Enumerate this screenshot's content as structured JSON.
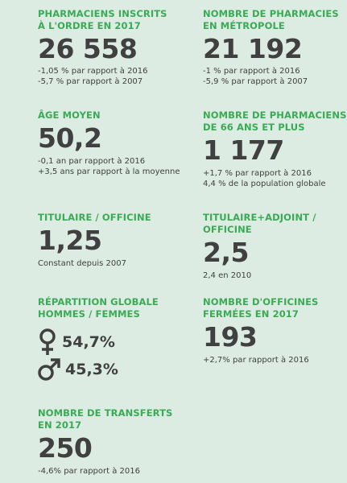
{
  "stats": {
    "inscrits": {
      "label_line1": "PHARMACIENS INSCRITS",
      "label_line2": "À L'ORDRE EN 2017",
      "value": "26 558",
      "notes": [
        "-1,05 % par rapport à 2016",
        "-5,7 % par rapport à 2007"
      ]
    },
    "metropole": {
      "label_line1": "NOMBRE DE PHARMACIES",
      "label_line2": "EN MÉTROPOLE",
      "value": "21 192",
      "notes": [
        "-1 % par rapport à 2016",
        "-5,9 % par rapport à 2007"
      ]
    },
    "age": {
      "label_line1": "ÂGE MOYEN",
      "value": "50,2",
      "notes": [
        "-0,1 an par rapport à 2016",
        "+3,5 ans par rapport à la moyenne"
      ]
    },
    "senior": {
      "label_line1": "NOMBRE DE PHARMACIENS",
      "label_line2": "DE 66 ANS ET PLUS",
      "value": "1 177",
      "notes": [
        "+1,7 % par rapport à 2016",
        "4,4 % de la population globale"
      ]
    },
    "titulaire": {
      "label_line1": "TITULAIRE / OFFICINE",
      "value": "1,25",
      "notes": [
        "Constant depuis 2007"
      ]
    },
    "adjoint": {
      "label_line1": "TITULAIRE+ADJOINT /",
      "label_line2": "OFFICINE",
      "value": "2,5",
      "notes": [
        "2,4 en 2010"
      ]
    },
    "repartition": {
      "label_line1": "RÉPARTITION GLOBALE",
      "label_line2": "HOMMES / FEMMES",
      "female_value": "54,7%",
      "male_value": "45,3%"
    },
    "fermees": {
      "label_line1": "NOMBRE D'OFFICINES",
      "label_line2": "FERMÉES EN 2017",
      "value": "193",
      "notes": [
        "+2,7% par rapport à 2016"
      ]
    },
    "transferts": {
      "label_line1": "NOMBRE DE TRANSFERTS",
      "label_line2": "EN 2017",
      "value": "250",
      "notes": [
        "-4,6% par rapport à 2016"
      ]
    }
  },
  "colors": {
    "background": "#dcece2",
    "accent_green": "#3aaa55",
    "text_dark": "#404040"
  },
  "icons": {
    "female": "female-symbol-icon",
    "male": "male-symbol-icon"
  }
}
